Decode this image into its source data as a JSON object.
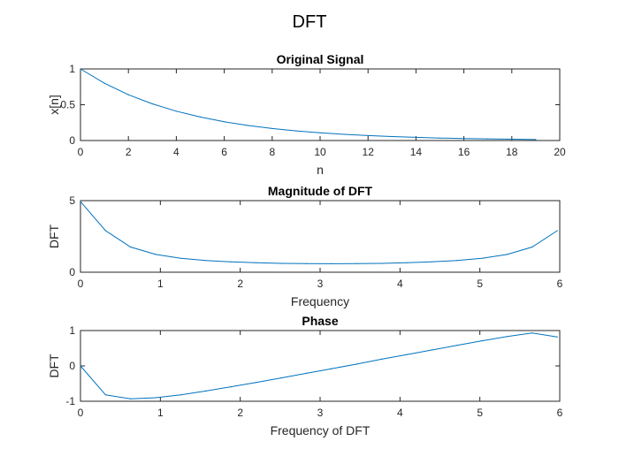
{
  "figure": {
    "title": "DFT"
  },
  "colors": {
    "line": "#0072BD",
    "axis": "#262626"
  },
  "chart_data": [
    {
      "type": "line",
      "title": "Original Signal",
      "xlabel": "n",
      "ylabel": "x[n]",
      "xlim": [
        0,
        20
      ],
      "ylim": [
        0,
        1
      ],
      "xticks": [
        0,
        2,
        4,
        6,
        8,
        10,
        12,
        14,
        16,
        18,
        20
      ],
      "yticks": [
        0,
        0.5,
        1
      ],
      "grid": false,
      "series": [
        {
          "x": [
            0,
            1,
            2,
            3,
            4,
            5,
            6,
            7,
            8,
            9,
            10,
            11,
            12,
            13,
            14,
            15,
            16,
            17,
            18,
            19
          ],
          "y": [
            1.0,
            0.8,
            0.64,
            0.512,
            0.41,
            0.328,
            0.262,
            0.21,
            0.168,
            0.134,
            0.107,
            0.086,
            0.069,
            0.055,
            0.044,
            0.035,
            0.028,
            0.023,
            0.018,
            0.014
          ]
        }
      ]
    },
    {
      "type": "line",
      "title": "Magnitude of DFT",
      "xlabel": "Frequency",
      "ylabel": "DFT",
      "xlim": [
        0,
        6
      ],
      "ylim": [
        0,
        5
      ],
      "xticks": [
        0,
        1,
        2,
        3,
        4,
        5,
        6
      ],
      "yticks": [
        0,
        5
      ],
      "grid": false,
      "series": [
        {
          "x": [
            0,
            0.314,
            0.628,
            0.942,
            1.257,
            1.571,
            1.885,
            2.199,
            2.513,
            2.827,
            3.142,
            3.456,
            3.77,
            4.084,
            4.398,
            4.712,
            5.027,
            5.341,
            5.655,
            5.969
          ],
          "y": [
            4.93,
            2.9,
            1.76,
            1.24,
            0.97,
            0.82,
            0.72,
            0.66,
            0.62,
            0.6,
            0.59,
            0.6,
            0.62,
            0.66,
            0.72,
            0.82,
            0.97,
            1.24,
            1.76,
            2.9
          ]
        }
      ]
    },
    {
      "type": "line",
      "title": "Phase",
      "xlabel": "Frequency of DFT",
      "ylabel": "DFT",
      "xlim": [
        0,
        6
      ],
      "ylim": [
        -1,
        1
      ],
      "xticks": [
        0,
        1,
        2,
        3,
        4,
        5,
        6
      ],
      "yticks": [
        -1,
        0,
        1
      ],
      "grid": false,
      "series": [
        {
          "x": [
            0,
            0.314,
            0.628,
            0.942,
            1.257,
            1.571,
            1.885,
            2.199,
            2.513,
            2.827,
            3.142,
            3.456,
            3.77,
            4.084,
            4.398,
            4.712,
            5.027,
            5.341,
            5.655,
            5.969
          ],
          "y": [
            0,
            -0.82,
            -0.93,
            -0.9,
            -0.82,
            -0.71,
            -0.59,
            -0.47,
            -0.34,
            -0.21,
            -0.08,
            0.05,
            0.19,
            0.32,
            0.45,
            0.58,
            0.71,
            0.83,
            0.93,
            0.82
          ]
        }
      ]
    }
  ]
}
